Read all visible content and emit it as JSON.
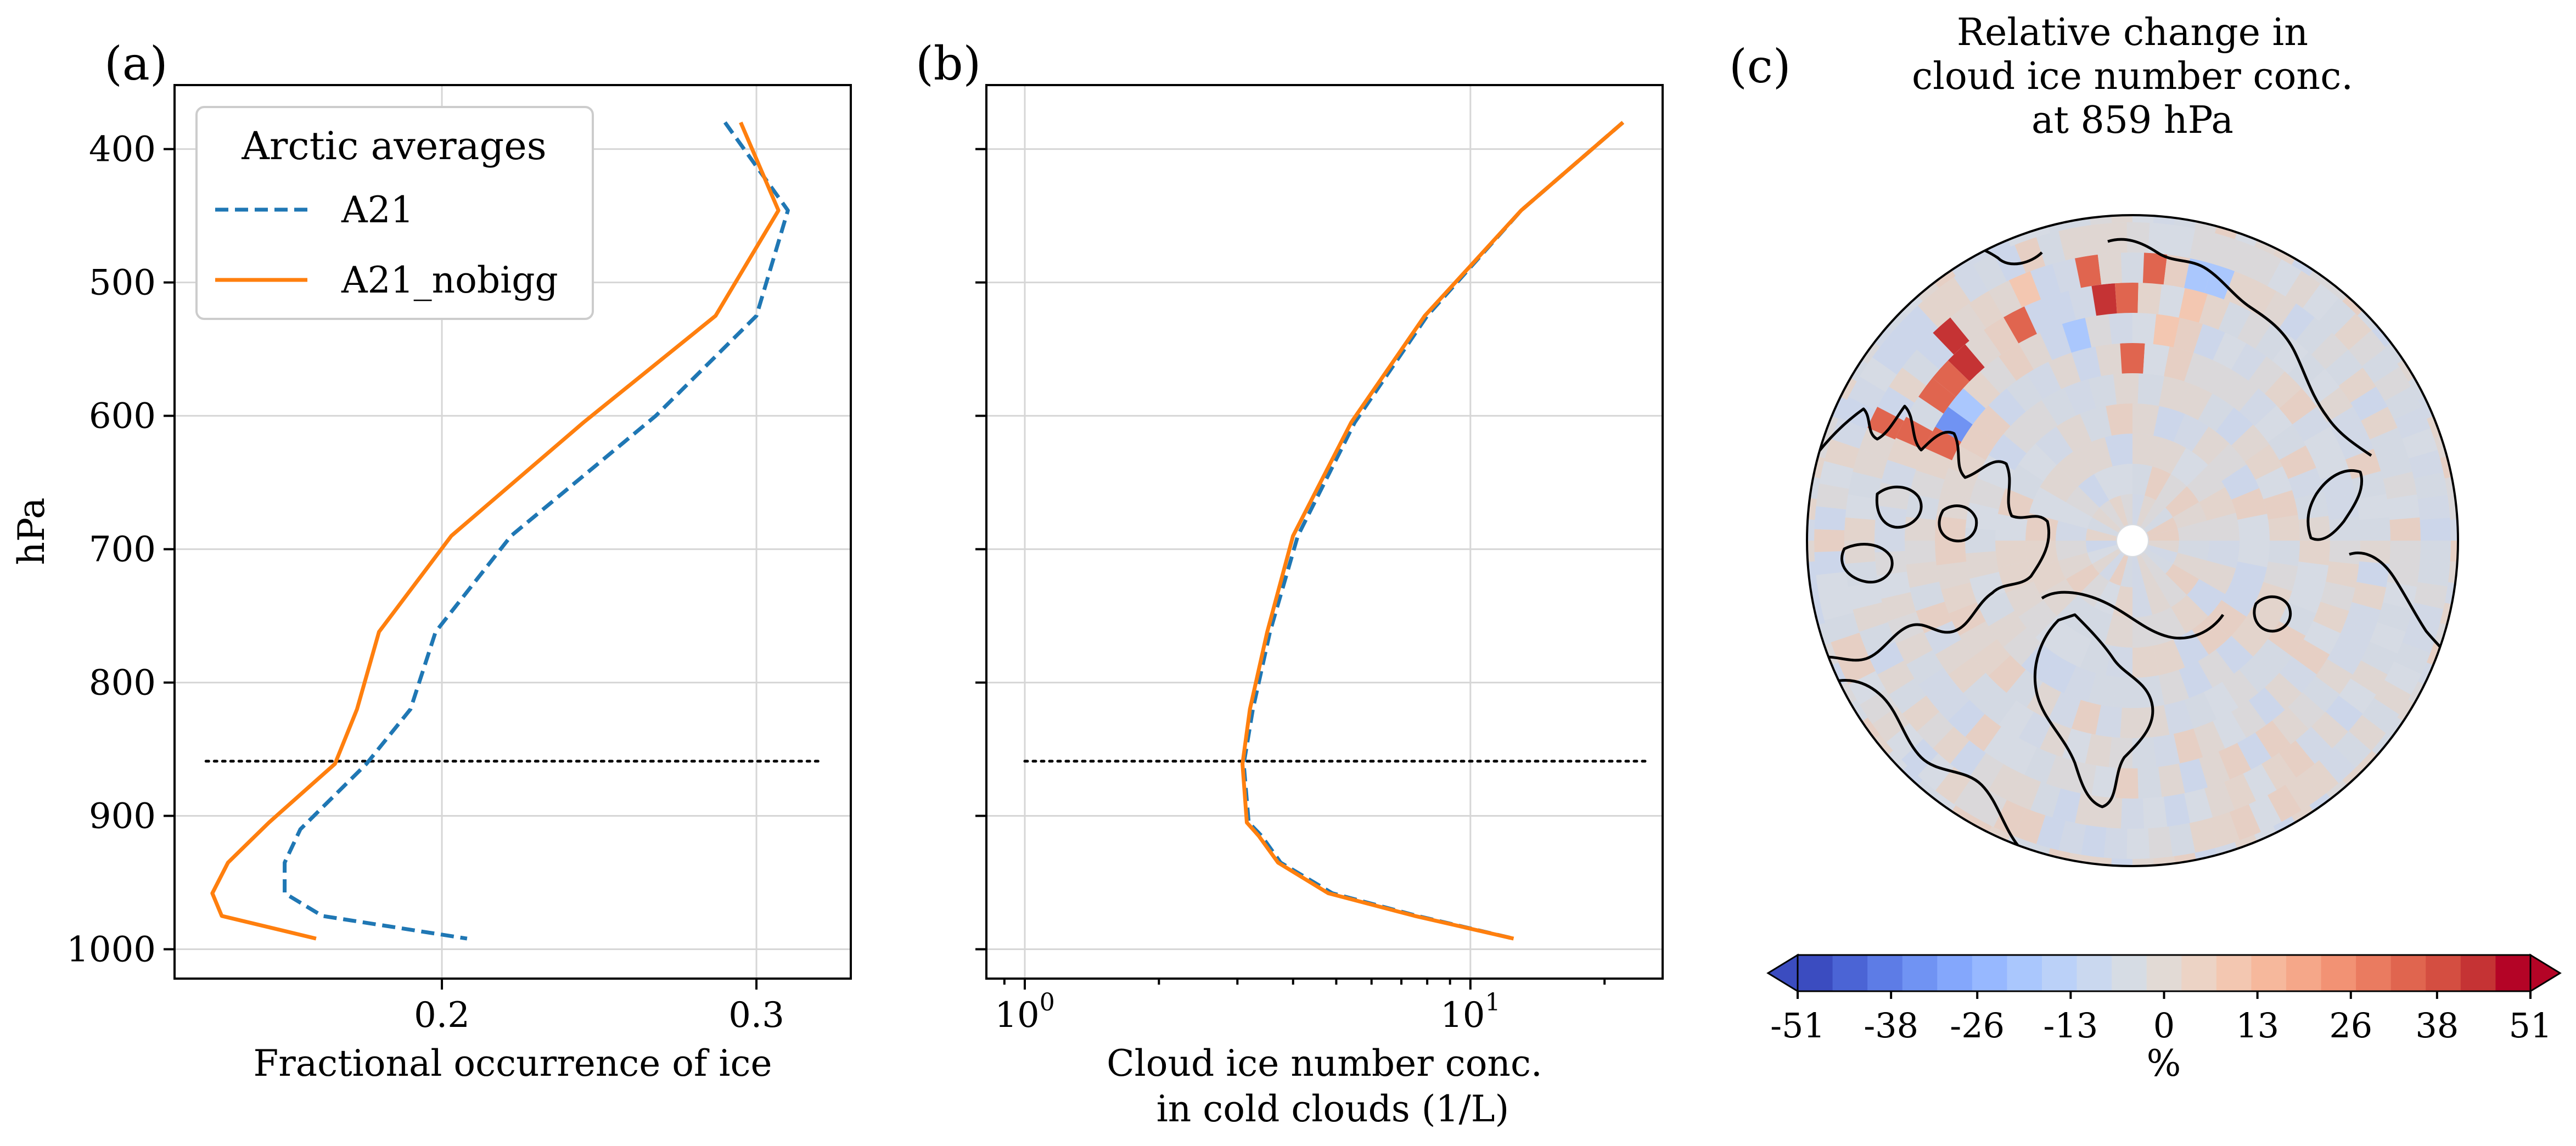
{
  "chart_data": [
    {
      "type": "line",
      "panel": "(a)",
      "xlabel": "Fractional occurrence of ice",
      "ylabel": "hPa",
      "xlim": [
        0.115,
        0.33
      ],
      "ylim": [
        1022,
        352
      ],
      "y_inverted": true,
      "xticks": [
        0.2,
        0.3
      ],
      "xtick_labels": [
        "0.2",
        "0.3"
      ],
      "yticks": [
        400,
        500,
        600,
        700,
        800,
        900,
        1000
      ],
      "ytick_labels": [
        "400",
        "500",
        "600",
        "700",
        "800",
        "900",
        "1000"
      ],
      "grid": true,
      "legend": {
        "title": "Arctic averages",
        "placement": "top-left"
      },
      "reference_line": {
        "y": 859,
        "x_from": 0.125,
        "x_to": 0.32,
        "style": "dotted"
      },
      "series": [
        {
          "name": "A21",
          "color": "#1f77b4",
          "dash": "dashed",
          "points": [
            [
              0.29,
              380
            ],
            [
              0.31,
              446
            ],
            [
              0.3,
              525
            ],
            [
              0.268,
              600
            ],
            [
              0.222,
              690
            ],
            [
              0.198,
              762
            ],
            [
              0.19,
              820
            ],
            [
              0.176,
              861
            ],
            [
              0.155,
              910
            ],
            [
              0.15,
              935
            ],
            [
              0.15,
              958
            ],
            [
              0.162,
              975
            ],
            [
              0.208,
              992
            ]
          ]
        },
        {
          "name": "A21_nobigg",
          "color": "#ff7f0e",
          "dash": "solid",
          "points": [
            [
              0.295,
              380
            ],
            [
              0.307,
              446
            ],
            [
              0.287,
              525
            ],
            [
              0.245,
              605
            ],
            [
              0.203,
              690
            ],
            [
              0.18,
              762
            ],
            [
              0.173,
              820
            ],
            [
              0.166,
              861
            ],
            [
              0.145,
              905
            ],
            [
              0.132,
              935
            ],
            [
              0.127,
              958
            ],
            [
              0.13,
              975
            ],
            [
              0.16,
              992
            ]
          ]
        }
      ]
    },
    {
      "type": "line",
      "panel": "(b)",
      "xlabel_lines": [
        "Cloud ice number conc.",
        "in cold clouds (1/L)"
      ],
      "xscale": "log",
      "xlim": [
        0.82,
        27
      ],
      "ylim": [
        1022,
        352
      ],
      "y_inverted": true,
      "xticks": [
        1,
        10
      ],
      "xtick_labels": [
        "1",
        "10"
      ],
      "yticks": [
        400,
        500,
        600,
        700,
        800,
        900,
        1000
      ],
      "grid": true,
      "reference_line": {
        "y": 859,
        "x_from": 1.0,
        "x_to": 25,
        "style": "dotted"
      },
      "series": [
        {
          "name": "A21",
          "color": "#1f77b4",
          "dash": "dashed",
          "points": [
            [
              22.0,
              380
            ],
            [
              13.0,
              446
            ],
            [
              8.0,
              525
            ],
            [
              5.5,
              605
            ],
            [
              4.1,
              690
            ],
            [
              3.55,
              762
            ],
            [
              3.25,
              820
            ],
            [
              3.1,
              861
            ],
            [
              3.18,
              905
            ],
            [
              3.4,
              915
            ],
            [
              3.75,
              935
            ],
            [
              4.9,
              958
            ],
            [
              7.6,
              975
            ],
            [
              12.5,
              992
            ]
          ]
        },
        {
          "name": "A21_nobigg",
          "color": "#ff7f0e",
          "dash": "solid",
          "points": [
            [
              22.0,
              380
            ],
            [
              13.0,
              446
            ],
            [
              7.9,
              525
            ],
            [
              5.4,
              605
            ],
            [
              4.0,
              690
            ],
            [
              3.5,
              762
            ],
            [
              3.2,
              820
            ],
            [
              3.08,
              861
            ],
            [
              3.15,
              905
            ],
            [
              3.35,
              915
            ],
            [
              3.7,
              935
            ],
            [
              4.8,
              958
            ],
            [
              7.5,
              975
            ],
            [
              12.5,
              992
            ]
          ]
        }
      ]
    },
    {
      "type": "heatmap",
      "panel": "(c)",
      "projection": "north-polar-stereographic",
      "title_lines": [
        "Relative change in",
        "cloud ice number conc.",
        "at 859 hPa"
      ],
      "colorbar": {
        "label": "%",
        "cmap": "coolwarm",
        "range": [
          -51,
          51
        ],
        "extend": "both",
        "ticks": [
          -51,
          -38,
          -26,
          -13,
          0,
          13,
          26,
          38,
          51
        ],
        "tick_labels": [
          "-51",
          "-38",
          "-26",
          "-13",
          "0",
          "13",
          "26",
          "38",
          "51"
        ],
        "colors": [
          "#3b4cc0",
          "#4b64d5",
          "#5d7ce6",
          "#7093f3",
          "#84a7fc",
          "#97b8ff",
          "#aac7fd",
          "#bbd1f8",
          "#cad8ef",
          "#d6dce4",
          "#e2dad5",
          "#ecd3c5",
          "#f3c7b1",
          "#f6b89c",
          "#f5a789",
          "#f29274",
          "#ea7b60",
          "#e0654f",
          "#d44e41",
          "#c53334",
          "#b40426"
        ]
      }
    }
  ]
}
